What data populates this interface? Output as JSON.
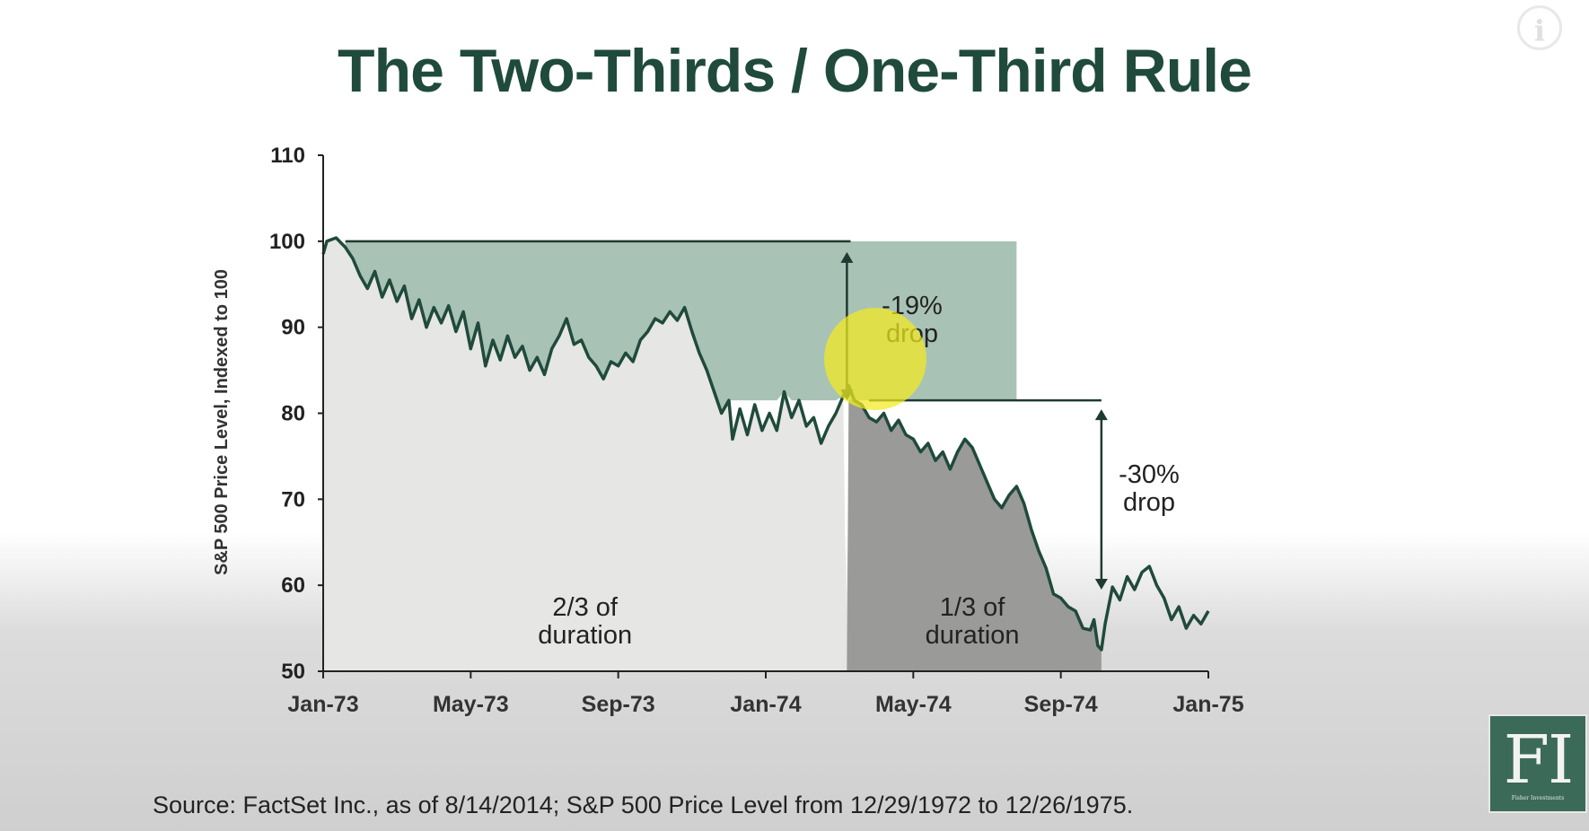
{
  "title": "The Two-Thirds / One-Third Rule",
  "source": "Source: FactSet Inc., as of 8/14/2014; S&P 500 Price Level from 12/29/1972 to 12/26/1975.",
  "logo": {
    "text": "FI",
    "subtext": "Fisher Investments"
  },
  "info_icon": "info-icon",
  "colors": {
    "line": "#1f4a3c",
    "upper_band": "#a9c2b6",
    "left_region": "#e6e6e4",
    "right_region": "#9a9a98",
    "highlight": "#f2ea1e"
  },
  "chart_data": {
    "type": "line",
    "ylabel": "S&P 500 Price Level, Indexed to 100",
    "xlabel": "",
    "ylim": [
      50,
      110
    ],
    "yticks": [
      "50",
      "60",
      "70",
      "80",
      "90",
      "100",
      "110"
    ],
    "xticks": [
      "Jan-73",
      "May-73",
      "Sep-73",
      "Jan-74",
      "May-74",
      "Sep-74",
      "Jan-75"
    ],
    "xrange_months": [
      0,
      24
    ],
    "series": [
      {
        "name": "",
        "points": [
          [
            0,
            98.5
          ],
          [
            0.1,
            100
          ],
          [
            0.35,
            100.4
          ],
          [
            0.6,
            99.3
          ],
          [
            0.8,
            98
          ],
          [
            1.0,
            96
          ],
          [
            1.2,
            94.5
          ],
          [
            1.4,
            96.5
          ],
          [
            1.6,
            93.5
          ],
          [
            1.8,
            95.5
          ],
          [
            2.0,
            93
          ],
          [
            2.2,
            94.8
          ],
          [
            2.4,
            91
          ],
          [
            2.6,
            93.2
          ],
          [
            2.8,
            90
          ],
          [
            3.0,
            92.3
          ],
          [
            3.2,
            90.5
          ],
          [
            3.4,
            92.5
          ],
          [
            3.6,
            89.5
          ],
          [
            3.8,
            91.8
          ],
          [
            4.0,
            87.5
          ],
          [
            4.2,
            90.5
          ],
          [
            4.4,
            85.5
          ],
          [
            4.6,
            88.5
          ],
          [
            4.8,
            86.2
          ],
          [
            5.0,
            89
          ],
          [
            5.2,
            86.5
          ],
          [
            5.4,
            87.8
          ],
          [
            5.6,
            85
          ],
          [
            5.8,
            86.5
          ],
          [
            6.0,
            84.5
          ],
          [
            6.2,
            87.5
          ],
          [
            6.4,
            89
          ],
          [
            6.6,
            91
          ],
          [
            6.8,
            88
          ],
          [
            7.0,
            88.5
          ],
          [
            7.2,
            86.5
          ],
          [
            7.4,
            85.5
          ],
          [
            7.6,
            84
          ],
          [
            7.8,
            86
          ],
          [
            8.0,
            85.5
          ],
          [
            8.2,
            87
          ],
          [
            8.4,
            86
          ],
          [
            8.6,
            88.5
          ],
          [
            8.8,
            89.5
          ],
          [
            9.0,
            91
          ],
          [
            9.2,
            90.5
          ],
          [
            9.4,
            91.8
          ],
          [
            9.6,
            90.8
          ],
          [
            9.8,
            92.3
          ],
          [
            10.0,
            89.5
          ],
          [
            10.2,
            87
          ],
          [
            10.4,
            85
          ],
          [
            10.6,
            82.5
          ],
          [
            10.8,
            80
          ],
          [
            11.0,
            81.5
          ],
          [
            11.1,
            77
          ],
          [
            11.3,
            80.5
          ],
          [
            11.5,
            77.5
          ],
          [
            11.7,
            81
          ],
          [
            11.9,
            78
          ],
          [
            12.1,
            80
          ],
          [
            12.3,
            78
          ],
          [
            12.5,
            82.5
          ],
          [
            12.7,
            79.5
          ],
          [
            12.9,
            81.5
          ],
          [
            13.1,
            78.5
          ],
          [
            13.3,
            79.5
          ],
          [
            13.5,
            76.5
          ],
          [
            13.7,
            78.5
          ],
          [
            13.9,
            80
          ],
          [
            14.1,
            82
          ],
          [
            14.25,
            83.2
          ],
          [
            14.4,
            81.5
          ],
          [
            14.6,
            81
          ],
          [
            14.8,
            79.5
          ],
          [
            15.0,
            79
          ],
          [
            15.2,
            80
          ],
          [
            15.4,
            78
          ],
          [
            15.6,
            79.2
          ],
          [
            15.8,
            77.5
          ],
          [
            16.0,
            77
          ],
          [
            16.2,
            75.5
          ],
          [
            16.4,
            76.5
          ],
          [
            16.6,
            74.5
          ],
          [
            16.8,
            75.5
          ],
          [
            17.0,
            73.5
          ],
          [
            17.2,
            75.5
          ],
          [
            17.4,
            77
          ],
          [
            17.6,
            76
          ],
          [
            17.8,
            74
          ],
          [
            18.0,
            72
          ],
          [
            18.2,
            70
          ],
          [
            18.4,
            69
          ],
          [
            18.6,
            70.5
          ],
          [
            18.8,
            71.5
          ],
          [
            19.0,
            69.5
          ],
          [
            19.2,
            66.5
          ],
          [
            19.4,
            64
          ],
          [
            19.6,
            62
          ],
          [
            19.8,
            59
          ],
          [
            20.0,
            58.5
          ],
          [
            20.2,
            57.5
          ],
          [
            20.4,
            57
          ],
          [
            20.6,
            55
          ],
          [
            20.8,
            54.8
          ],
          [
            20.9,
            56
          ],
          [
            21.0,
            53
          ],
          [
            21.1,
            52.5
          ],
          [
            21.2,
            55.5
          ],
          [
            21.4,
            59.8
          ],
          [
            21.6,
            58.3
          ],
          [
            21.8,
            61
          ],
          [
            22.0,
            59.5
          ],
          [
            22.2,
            61.5
          ],
          [
            22.4,
            62.2
          ],
          [
            22.6,
            60
          ],
          [
            22.8,
            58.5
          ],
          [
            23.0,
            56
          ],
          [
            23.2,
            57.5
          ],
          [
            23.4,
            55
          ],
          [
            23.6,
            56.5
          ],
          [
            23.8,
            55.5
          ],
          [
            24.0,
            57
          ]
        ]
      }
    ],
    "annotations": [
      {
        "text": "-19% drop",
        "from": 100,
        "to": 81.5
      },
      {
        "text": "-30% drop",
        "from": 81.5,
        "to": 57
      }
    ],
    "region_labels": [
      {
        "line1": "2/3 of",
        "line2": "duration"
      },
      {
        "line1": "1/3 of",
        "line2": "duration"
      }
    ],
    "bands": {
      "drop1": {
        "x_from": 0.6,
        "x_to": 18.8,
        "y_from": 81.5,
        "y_to": 100
      },
      "drop2_top": 81.5,
      "split_month": 14.2,
      "end_month": 21.1,
      "trough": 52.5
    },
    "grid": false,
    "legend": "none"
  }
}
